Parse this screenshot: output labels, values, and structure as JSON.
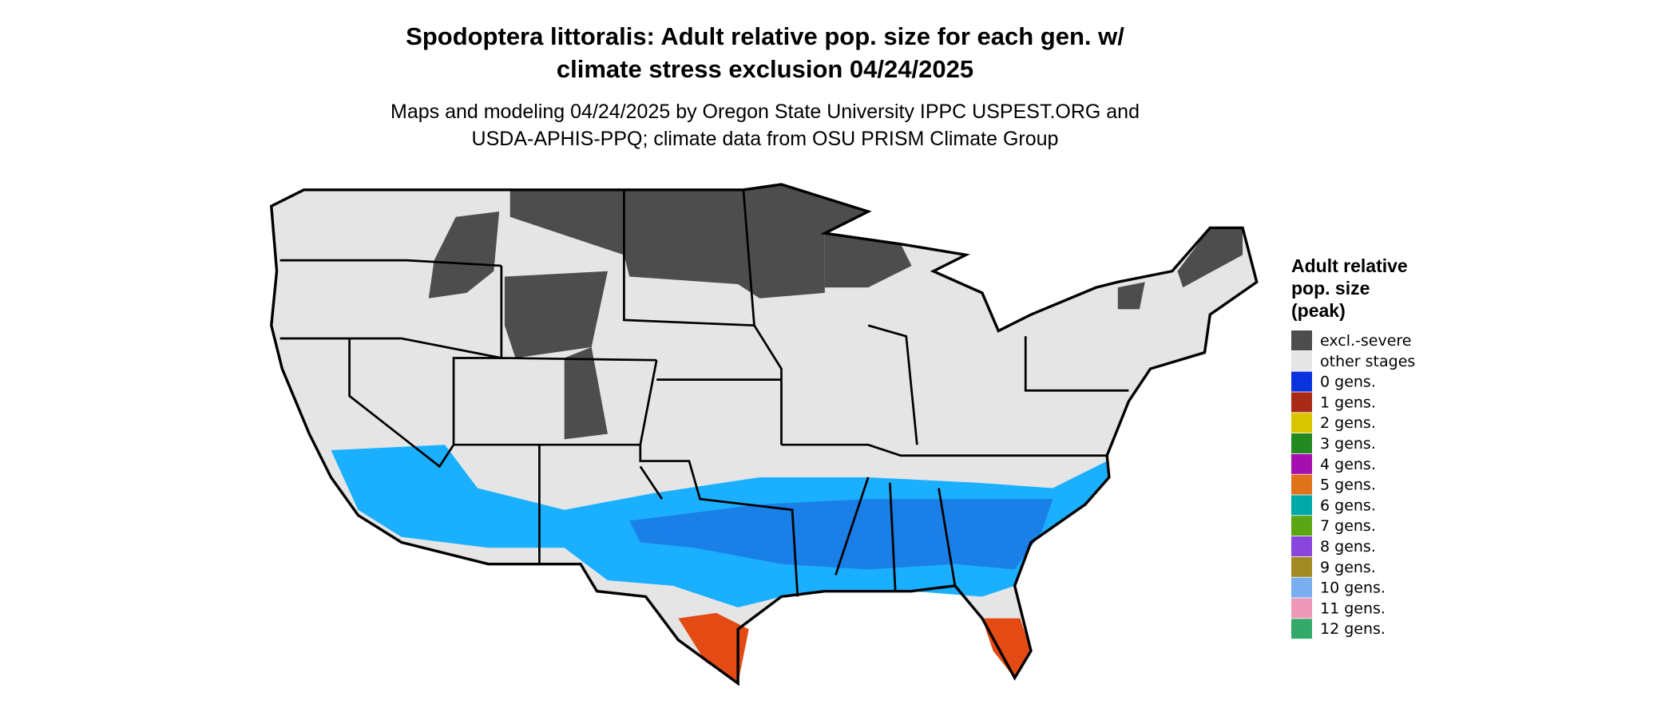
{
  "title": [
    "Spodoptera littoralis: Adult relative pop. size for each gen. w/",
    "climate stress exclusion 04/24/2025"
  ],
  "subtitle": [
    "Maps and modeling 04/24/2025 by Oregon State University IPPC USPEST.ORG and",
    "USDA-APHIS-PPQ; climate data from OSU PRISM Climate Group"
  ],
  "legend": {
    "title": [
      "Adult relative",
      "pop. size",
      "(peak)"
    ],
    "items": [
      {
        "label": "excl.-severe",
        "color": "#4d4d4d"
      },
      {
        "label": "other stages",
        "color": "#e5e5e5"
      },
      {
        "label": "0 gens.",
        "color": "#0a33dd"
      },
      {
        "label": "1 gens.",
        "color": "#aa2a18"
      },
      {
        "label": "2 gens.",
        "color": "#d9c400"
      },
      {
        "label": "3 gens.",
        "color": "#238a22"
      },
      {
        "label": "4 gens.",
        "color": "#a50fb0"
      },
      {
        "label": "5 gens.",
        "color": "#e0721a"
      },
      {
        "label": "6 gens.",
        "color": "#00a8a8"
      },
      {
        "label": "7 gens.",
        "color": "#5aa614"
      },
      {
        "label": "8 gens.",
        "color": "#8a45dd"
      },
      {
        "label": "9 gens.",
        "color": "#a08a22"
      },
      {
        "label": "10 gens.",
        "color": "#79aef0"
      },
      {
        "label": "11 gens.",
        "color": "#ee98b8"
      },
      {
        "label": "12 gens.",
        "color": "#33aa6a"
      }
    ]
  }
}
